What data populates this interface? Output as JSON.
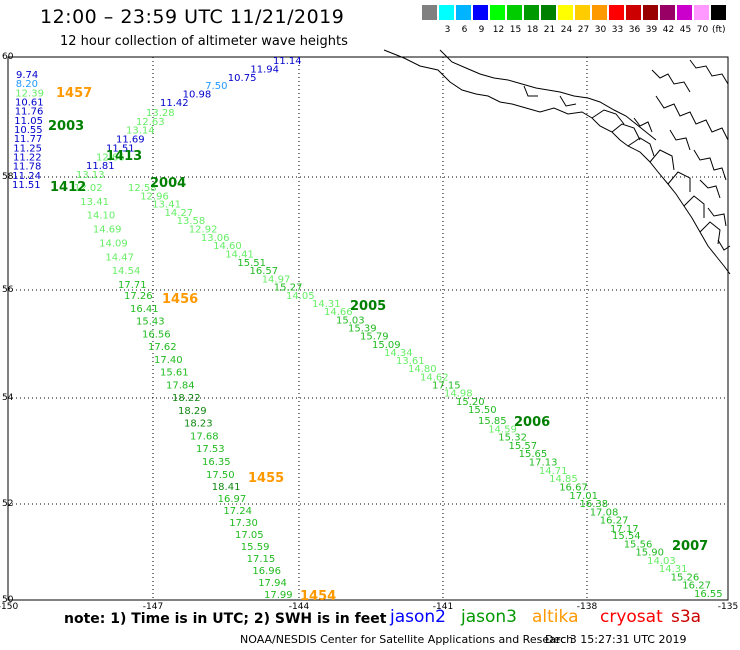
{
  "header": {
    "title": "12:00 – 23:59 UTC 11/21/2019",
    "subtitle": "12 hour collection of altimeter wave heights"
  },
  "color_scale": {
    "unit": "(ft)",
    "bins": [
      {
        "label": "",
        "color": "#808080"
      },
      {
        "label": "3",
        "color": "#00ffff"
      },
      {
        "label": "6",
        "color": "#00b4ff"
      },
      {
        "label": "9",
        "color": "#0000ff"
      },
      {
        "label": "12",
        "color": "#00ff00"
      },
      {
        "label": "15",
        "color": "#00cc00"
      },
      {
        "label": "18",
        "color": "#009900"
      },
      {
        "label": "21",
        "color": "#008000"
      },
      {
        "label": "24",
        "color": "#ffff00"
      },
      {
        "label": "27",
        "color": "#ffcc00"
      },
      {
        "label": "30",
        "color": "#ff9900"
      },
      {
        "label": "33",
        "color": "#ff0000"
      },
      {
        "label": "36",
        "color": "#cc0000"
      },
      {
        "label": "39",
        "color": "#990000"
      },
      {
        "label": "42",
        "color": "#990066"
      },
      {
        "label": "45",
        "color": "#cc00cc"
      },
      {
        "label": "70",
        "color": "#ff99ff"
      },
      {
        "label": "",
        "color": "#000000"
      }
    ]
  },
  "axes": {
    "lat_labels": [
      "60",
      "58",
      "56",
      "54",
      "52",
      "50"
    ],
    "lon_labels": [
      "-150",
      "-147",
      "-144",
      "-141",
      "-138",
      "-135"
    ]
  },
  "wave_colors": {
    "light": "#66ee66",
    "mid": "#22bb22",
    "deep": "#118811",
    "blue": "#0000cc",
    "cyan": "#2299ff",
    "orange": "#ff9900",
    "label_green": "#008000"
  },
  "passes": [
    {
      "label": "1457",
      "color": "orange",
      "pts": [
        {
          "v": "11.14",
          "c": "blue"
        },
        {
          "v": "11.94",
          "c": "blue"
        },
        {
          "v": "10.75",
          "c": "blue"
        },
        {
          "v": "7.50",
          "c": "cyan"
        },
        {
          "v": "10.98",
          "c": "blue"
        },
        {
          "v": "11.42",
          "c": "blue"
        }
      ]
    },
    {
      "label": "2003",
      "color": "label_green",
      "pts": [
        {
          "v": "9.74",
          "c": "blue"
        },
        {
          "v": "8.20",
          "c": "cyan"
        },
        {
          "v": "12.39",
          "c": "light"
        },
        {
          "v": "10.61",
          "c": "blue"
        },
        {
          "v": "11.76",
          "c": "blue"
        },
        {
          "v": "11.05",
          "c": "blue"
        },
        {
          "v": "10.55",
          "c": "blue"
        },
        {
          "v": "11.77",
          "c": "blue"
        },
        {
          "v": "11.25",
          "c": "blue"
        },
        {
          "v": "11.22",
          "c": "blue"
        },
        {
          "v": "11.78",
          "c": "blue"
        },
        {
          "v": "11.24",
          "c": "blue"
        },
        {
          "v": "11.51",
          "c": "blue"
        }
      ]
    },
    {
      "label": "1413",
      "color": "label_green",
      "pts": [
        {
          "v": "13.28",
          "c": "light"
        },
        {
          "v": "12.63",
          "c": "light"
        },
        {
          "v": "13.14",
          "c": "light"
        },
        {
          "v": "11.69",
          "c": "blue"
        },
        {
          "v": "11.51",
          "c": "blue"
        },
        {
          "v": "12.66",
          "c": "light"
        },
        {
          "v": "11.81",
          "c": "blue"
        },
        {
          "v": "13.13",
          "c": "light"
        }
      ]
    },
    {
      "label": "1412",
      "color": "label_green",
      "pts": [
        {
          "v": "12.02",
          "c": "light"
        },
        {
          "v": "13.41",
          "c": "light"
        },
        {
          "v": "14.10",
          "c": "light"
        },
        {
          "v": "14.69",
          "c": "light"
        },
        {
          "v": "14.09",
          "c": "light"
        },
        {
          "v": "14.47",
          "c": "light"
        },
        {
          "v": "14.54",
          "c": "light"
        },
        {
          "v": "17.71",
          "c": "mid"
        }
      ]
    },
    {
      "label": "1456",
      "color": "orange",
      "pts": [
        {
          "v": "17.26",
          "c": "mid"
        },
        {
          "v": "16.41",
          "c": "mid"
        },
        {
          "v": "15.43",
          "c": "mid"
        },
        {
          "v": "16.56",
          "c": "mid"
        },
        {
          "v": "17.62",
          "c": "mid"
        },
        {
          "v": "17.40",
          "c": "mid"
        },
        {
          "v": "15.61",
          "c": "mid"
        },
        {
          "v": "17.84",
          "c": "mid"
        },
        {
          "v": "18.22",
          "c": "deep"
        },
        {
          "v": "18.29",
          "c": "deep"
        },
        {
          "v": "18.23",
          "c": "deep"
        },
        {
          "v": "17.68",
          "c": "mid"
        },
        {
          "v": "17.53",
          "c": "mid"
        },
        {
          "v": "16.35",
          "c": "mid"
        }
      ]
    },
    {
      "label": "1455",
      "color": "orange",
      "pts": [
        {
          "v": "17.50",
          "c": "mid"
        },
        {
          "v": "18.41",
          "c": "deep"
        },
        {
          "v": "16.97",
          "c": "mid"
        },
        {
          "v": "17.24",
          "c": "mid"
        },
        {
          "v": "17.30",
          "c": "mid"
        },
        {
          "v": "17.05",
          "c": "mid"
        },
        {
          "v": "15.59",
          "c": "mid"
        },
        {
          "v": "17.15",
          "c": "mid"
        },
        {
          "v": "16.96",
          "c": "mid"
        },
        {
          "v": "17.94",
          "c": "mid"
        },
        {
          "v": "17.99",
          "c": "mid"
        }
      ]
    },
    {
      "label": "1454",
      "color": "orange",
      "pts": []
    },
    {
      "label": "2004",
      "color": "label_green",
      "pts": [
        {
          "v": "12.58",
          "c": "light"
        },
        {
          "v": "12.96",
          "c": "light"
        },
        {
          "v": "13.41",
          "c": "light"
        },
        {
          "v": "14.27",
          "c": "light"
        },
        {
          "v": "13.58",
          "c": "light"
        },
        {
          "v": "12.92",
          "c": "light"
        },
        {
          "v": "13.06",
          "c": "light"
        },
        {
          "v": "14.60",
          "c": "light"
        },
        {
          "v": "14.41",
          "c": "light"
        },
        {
          "v": "15.51",
          "c": "mid"
        },
        {
          "v": "16.57",
          "c": "mid"
        },
        {
          "v": "14.97",
          "c": "light"
        },
        {
          "v": "15.27",
          "c": "mid"
        },
        {
          "v": "14.05",
          "c": "light"
        }
      ]
    },
    {
      "label": "2005",
      "color": "label_green",
      "pts": [
        {
          "v": "14.31",
          "c": "light"
        },
        {
          "v": "14.66",
          "c": "light"
        },
        {
          "v": "15.03",
          "c": "mid"
        },
        {
          "v": "15.39",
          "c": "mid"
        },
        {
          "v": "15.79",
          "c": "mid"
        },
        {
          "v": "15.09",
          "c": "mid"
        },
        {
          "v": "14.34",
          "c": "light"
        },
        {
          "v": "13.61",
          "c": "light"
        },
        {
          "v": "14.80",
          "c": "light"
        },
        {
          "v": "14.62",
          "c": "light"
        },
        {
          "v": "17.15",
          "c": "mid"
        },
        {
          "v": "14.98",
          "c": "light"
        },
        {
          "v": "15.20",
          "c": "mid"
        },
        {
          "v": "15.50",
          "c": "mid"
        }
      ]
    },
    {
      "label": "2006",
      "color": "label_green",
      "pts": [
        {
          "v": "15.85",
          "c": "mid"
        },
        {
          "v": "14.59",
          "c": "light"
        },
        {
          "v": "15.32",
          "c": "mid"
        },
        {
          "v": "15.57",
          "c": "mid"
        },
        {
          "v": "15.65",
          "c": "mid"
        },
        {
          "v": "17.13",
          "c": "mid"
        },
        {
          "v": "14.71",
          "c": "light"
        },
        {
          "v": "14.85",
          "c": "light"
        },
        {
          "v": "16.67",
          "c": "mid"
        },
        {
          "v": "17.01",
          "c": "mid"
        },
        {
          "v": "16.38",
          "c": "mid"
        },
        {
          "v": "17.08",
          "c": "mid"
        },
        {
          "v": "16.27",
          "c": "mid"
        },
        {
          "v": "17.17",
          "c": "mid"
        }
      ]
    },
    {
      "label": "2007",
      "color": "label_green",
      "pts": [
        {
          "v": "15.54",
          "c": "mid"
        },
        {
          "v": "15.56",
          "c": "mid"
        },
        {
          "v": "15.90",
          "c": "mid"
        },
        {
          "v": "14.03",
          "c": "light"
        },
        {
          "v": "14.31",
          "c": "light"
        },
        {
          "v": "15.26",
          "c": "mid"
        },
        {
          "v": "16.27",
          "c": "mid"
        },
        {
          "v": "16.55",
          "c": "mid"
        }
      ]
    }
  ],
  "footer": {
    "note": "note: 1) Time is in UTC; 2) SWH is in feet",
    "legend": [
      {
        "name": "jason2",
        "color": "#0000ff"
      },
      {
        "name": "jason3",
        "color": "#009900"
      },
      {
        "name": "altika",
        "color": "#ff9900"
      },
      {
        "name": "cryosat",
        "color": "#ff0000"
      },
      {
        "name": "s3a",
        "color": "#cc0000"
      }
    ],
    "credit": "NOAA/NESDIS Center for Satellite Applications and Research",
    "timestamp": "Dec  3 15:27:31 UTC 2019"
  }
}
